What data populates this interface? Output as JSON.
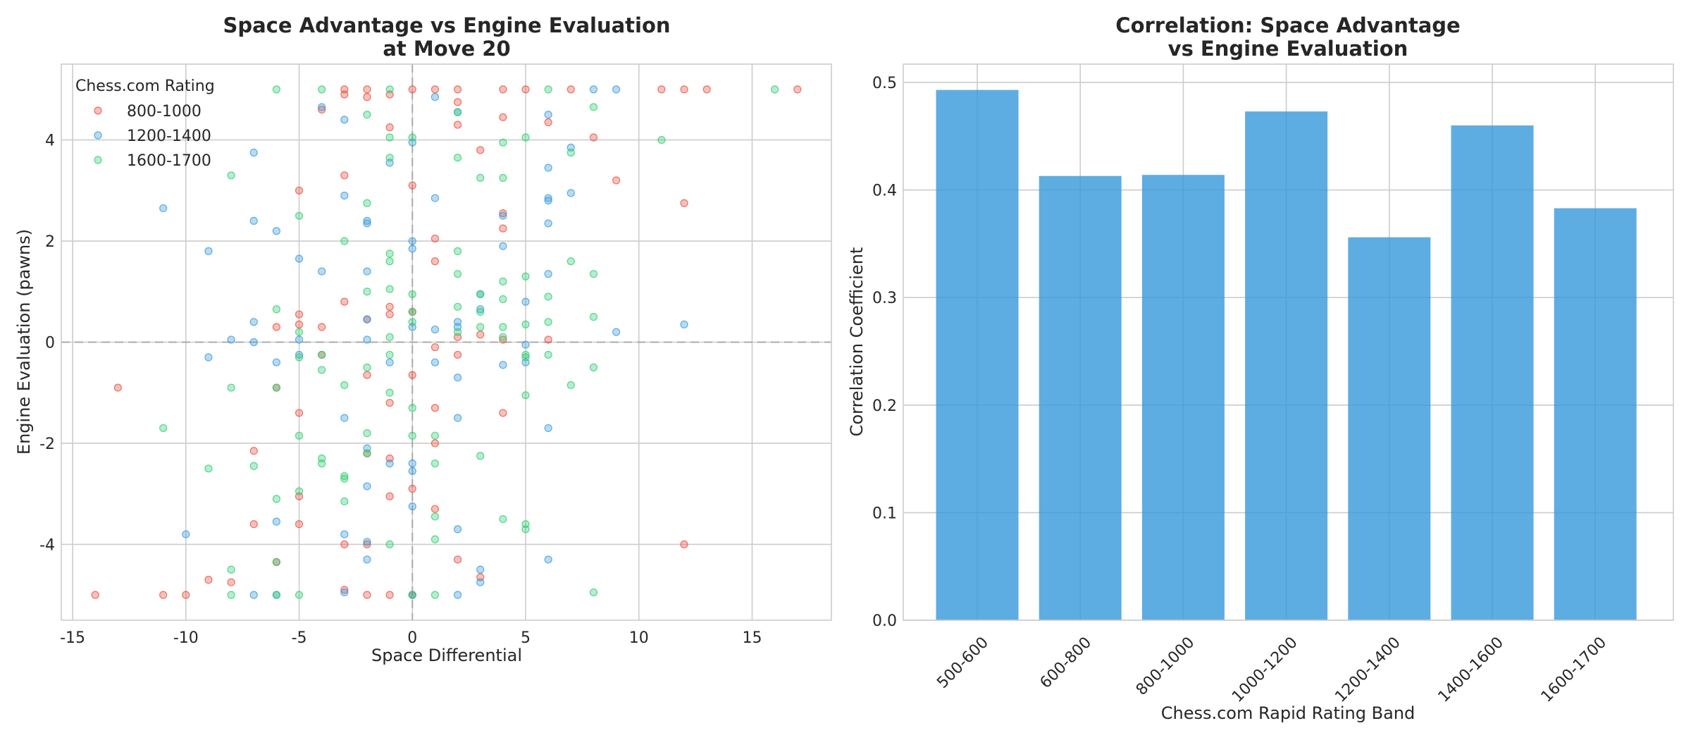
{
  "chart_data": [
    {
      "type": "scatter",
      "title_line1": "Space Advantage vs Engine Evaluation",
      "title_line2": "at Move 20",
      "xlabel": "Space Differential",
      "ylabel": "Engine Evaluation (pawns)",
      "xlim": [
        -15.5,
        18.5
      ],
      "ylim": [
        -5.5,
        5.5
      ],
      "xticks": [
        -15,
        -10,
        -5,
        0,
        5,
        10,
        15
      ],
      "yticks": [
        -4,
        -2,
        0,
        2,
        4
      ],
      "grid": true,
      "reference_lines": {
        "x": 0,
        "y": 0,
        "style": "dashed"
      },
      "legend": {
        "title": "Chess.com Rating",
        "position": "top-left"
      },
      "series": [
        {
          "name": "800-1000",
          "color": "#e74c3c",
          "points": [
            [
              -14,
              -5
            ],
            [
              -13,
              -0.9
            ],
            [
              -11,
              -5
            ],
            [
              -10,
              -5
            ],
            [
              -9,
              -4.7
            ],
            [
              -8,
              -4.75
            ],
            [
              -7,
              -3.6
            ],
            [
              -7,
              -2.15
            ],
            [
              -6,
              0.3
            ],
            [
              -6,
              -0.9
            ],
            [
              -6,
              -4.35
            ],
            [
              -5,
              3
            ],
            [
              -5,
              0.55
            ],
            [
              -5,
              0.35
            ],
            [
              -5,
              -1.4
            ],
            [
              -5,
              -3.05
            ],
            [
              -5,
              -3.6
            ],
            [
              -4,
              4.6
            ],
            [
              -4,
              0.3
            ],
            [
              -4,
              -0.25
            ],
            [
              -3,
              5
            ],
            [
              -3,
              4.9
            ],
            [
              -3,
              3.3
            ],
            [
              -3,
              0.8
            ],
            [
              -3,
              -4
            ],
            [
              -3,
              -4.9
            ],
            [
              -2,
              5
            ],
            [
              -2,
              4.85
            ],
            [
              -2,
              0.45
            ],
            [
              -2,
              -0.65
            ],
            [
              -2,
              -2.2
            ],
            [
              -2,
              -4
            ],
            [
              -2,
              -5
            ],
            [
              -1,
              4.9
            ],
            [
              -1,
              4.25
            ],
            [
              -1,
              0.7
            ],
            [
              -1,
              0.55
            ],
            [
              -1,
              -1.2
            ],
            [
              -1,
              -2.3
            ],
            [
              -1,
              -3.05
            ],
            [
              -1,
              -5
            ],
            [
              0,
              5
            ],
            [
              0,
              3.1
            ],
            [
              0,
              0.6
            ],
            [
              0,
              -0.65
            ],
            [
              0,
              -2.9
            ],
            [
              0,
              -5
            ],
            [
              1,
              5
            ],
            [
              1,
              2.05
            ],
            [
              1,
              1.6
            ],
            [
              1,
              -0.1
            ],
            [
              1,
              -1.3
            ],
            [
              1,
              -2
            ],
            [
              1,
              -3.3
            ],
            [
              2,
              5
            ],
            [
              2,
              4.75
            ],
            [
              2,
              4.3
            ],
            [
              2,
              0.1
            ],
            [
              2,
              -0.25
            ],
            [
              2,
              -4.3
            ],
            [
              3,
              3.8
            ],
            [
              3,
              0.15
            ],
            [
              3,
              -4.65
            ],
            [
              4,
              5
            ],
            [
              4,
              4.45
            ],
            [
              4,
              2.55
            ],
            [
              4,
              2.25
            ],
            [
              4,
              0.05
            ],
            [
              4,
              -1.4
            ],
            [
              5,
              5
            ],
            [
              6,
              4.35
            ],
            [
              6,
              0.05
            ],
            [
              7,
              5
            ],
            [
              8,
              4.05
            ],
            [
              9,
              3.2
            ],
            [
              11,
              5
            ],
            [
              12,
              5
            ],
            [
              12,
              2.75
            ],
            [
              12,
              -4
            ],
            [
              13,
              5
            ],
            [
              17,
              5
            ]
          ]
        },
        {
          "name": "1200-1400",
          "color": "#3498db",
          "points": [
            [
              -11,
              2.65
            ],
            [
              -10,
              -3.8
            ],
            [
              -9,
              1.8
            ],
            [
              -9,
              -0.3
            ],
            [
              -8,
              0.05
            ],
            [
              -7,
              3.75
            ],
            [
              -7,
              2.4
            ],
            [
              -7,
              0.4
            ],
            [
              -7,
              0
            ],
            [
              -7,
              -5
            ],
            [
              -6,
              2.2
            ],
            [
              -6,
              -0.4
            ],
            [
              -6,
              -3.55
            ],
            [
              -6,
              -5
            ],
            [
              -5,
              1.65
            ],
            [
              -5,
              0.05
            ],
            [
              -5,
              -0.25
            ],
            [
              -4,
              4.65
            ],
            [
              -4,
              1.4
            ],
            [
              -3,
              4.4
            ],
            [
              -3,
              2.9
            ],
            [
              -3,
              -1.5
            ],
            [
              -3,
              -3.8
            ],
            [
              -3,
              -4.95
            ],
            [
              -2,
              2.4
            ],
            [
              -2,
              2.35
            ],
            [
              -2,
              1.4
            ],
            [
              -2,
              0.45
            ],
            [
              -2,
              0.05
            ],
            [
              -2,
              -2.1
            ],
            [
              -2,
              -2.85
            ],
            [
              -2,
              -3.95
            ],
            [
              -2,
              -4.3
            ],
            [
              -1,
              3.55
            ],
            [
              -1,
              -0.4
            ],
            [
              -1,
              -2.4
            ],
            [
              0,
              3.95
            ],
            [
              0,
              2
            ],
            [
              0,
              1.85
            ],
            [
              0,
              0.3
            ],
            [
              0,
              -2.4
            ],
            [
              0,
              -2.55
            ],
            [
              0,
              -3.25
            ],
            [
              0,
              -5
            ],
            [
              1,
              4.85
            ],
            [
              1,
              2.85
            ],
            [
              1,
              0.25
            ],
            [
              1,
              -0.4
            ],
            [
              2,
              4.55
            ],
            [
              2,
              0.4
            ],
            [
              2,
              0.3
            ],
            [
              2,
              -0.7
            ],
            [
              2,
              -1.5
            ],
            [
              2,
              -3.7
            ],
            [
              2,
              -5
            ],
            [
              3,
              0.95
            ],
            [
              3,
              0.65
            ],
            [
              3,
              -4.5
            ],
            [
              3,
              -4.75
            ],
            [
              4,
              2.5
            ],
            [
              4,
              1.9
            ],
            [
              4,
              -0.45
            ],
            [
              5,
              0.8
            ],
            [
              5,
              -0.05
            ],
            [
              5,
              -0.4
            ],
            [
              6,
              4.5
            ],
            [
              6,
              3.45
            ],
            [
              6,
              2.85
            ],
            [
              6,
              2.8
            ],
            [
              6,
              2.35
            ],
            [
              6,
              1.35
            ],
            [
              6,
              -1.7
            ],
            [
              6,
              -4.3
            ],
            [
              7,
              3.85
            ],
            [
              7,
              2.95
            ],
            [
              8,
              5
            ],
            [
              9,
              5
            ],
            [
              9,
              0.2
            ],
            [
              12,
              0.35
            ]
          ]
        },
        {
          "name": "1600-1700",
          "color": "#2ecc71",
          "points": [
            [
              -11,
              -1.7
            ],
            [
              -9,
              -2.5
            ],
            [
              -8,
              3.3
            ],
            [
              -8,
              -0.9
            ],
            [
              -8,
              -4.5
            ],
            [
              -8,
              -5
            ],
            [
              -7,
              -2.45
            ],
            [
              -6,
              5
            ],
            [
              -6,
              0.65
            ],
            [
              -6,
              -0.9
            ],
            [
              -6,
              -3.1
            ],
            [
              -6,
              -4.35
            ],
            [
              -6,
              -5
            ],
            [
              -5,
              2.5
            ],
            [
              -5,
              0.2
            ],
            [
              -5,
              -0.3
            ],
            [
              -5,
              -1.85
            ],
            [
              -5,
              -2.95
            ],
            [
              -5,
              -5
            ],
            [
              -4,
              5
            ],
            [
              -4,
              -0.25
            ],
            [
              -4,
              -0.55
            ],
            [
              -4,
              -2.3
            ],
            [
              -4,
              -2.4
            ],
            [
              -3,
              2
            ],
            [
              -3,
              -0.85
            ],
            [
              -3,
              -2.65
            ],
            [
              -3,
              -2.7
            ],
            [
              -3,
              -3.15
            ],
            [
              -2,
              4.5
            ],
            [
              -2,
              2.75
            ],
            [
              -2,
              1
            ],
            [
              -2,
              -0.5
            ],
            [
              -2,
              -1.8
            ],
            [
              -2,
              -2.2
            ],
            [
              -1,
              5
            ],
            [
              -1,
              4.05
            ],
            [
              -1,
              3.65
            ],
            [
              -1,
              1.75
            ],
            [
              -1,
              1.6
            ],
            [
              -1,
              1.05
            ],
            [
              -1,
              0.1
            ],
            [
              -1,
              -0.25
            ],
            [
              -1,
              -1
            ],
            [
              -1,
              -4
            ],
            [
              0,
              4.05
            ],
            [
              0,
              0.95
            ],
            [
              0,
              0.6
            ],
            [
              0,
              0.4
            ],
            [
              0,
              -1.3
            ],
            [
              0,
              -1.85
            ],
            [
              0,
              -5
            ],
            [
              1,
              -1.85
            ],
            [
              1,
              -2.4
            ],
            [
              1,
              -3.45
            ],
            [
              1,
              -3.9
            ],
            [
              1,
              -5
            ],
            [
              2,
              4.55
            ],
            [
              2,
              3.65
            ],
            [
              2,
              1.8
            ],
            [
              2,
              1.35
            ],
            [
              2,
              0.7
            ],
            [
              2,
              0.2
            ],
            [
              3,
              3.25
            ],
            [
              3,
              0.95
            ],
            [
              3,
              0.6
            ],
            [
              3,
              0.3
            ],
            [
              3,
              -2.25
            ],
            [
              4,
              3.95
            ],
            [
              4,
              3.25
            ],
            [
              4,
              1.2
            ],
            [
              4,
              0.85
            ],
            [
              4,
              0.3
            ],
            [
              4,
              0.1
            ],
            [
              4,
              -3.5
            ],
            [
              5,
              4.05
            ],
            [
              5,
              1.3
            ],
            [
              5,
              0.35
            ],
            [
              5,
              -0.25
            ],
            [
              5,
              -0.3
            ],
            [
              5,
              -1.05
            ],
            [
              5,
              -3.6
            ],
            [
              5,
              -3.7
            ],
            [
              6,
              5
            ],
            [
              6,
              0.9
            ],
            [
              6,
              0.4
            ],
            [
              6,
              -0.25
            ],
            [
              7,
              3.75
            ],
            [
              7,
              1.6
            ],
            [
              7,
              -0.85
            ],
            [
              8,
              4.65
            ],
            [
              8,
              1.35
            ],
            [
              8,
              0.5
            ],
            [
              8,
              -0.5
            ],
            [
              8,
              -4.95
            ],
            [
              11,
              4
            ],
            [
              16,
              5
            ]
          ]
        }
      ]
    },
    {
      "type": "bar",
      "title_line1": "Correlation: Space Advantage",
      "title_line2": "vs Engine Evaluation",
      "xlabel": "Chess.com Rapid Rating Band",
      "ylabel": "Correlation Coefficient",
      "categories": [
        "500-600",
        "600-800",
        "800-1000",
        "1000-1200",
        "1200-1400",
        "1400-1600",
        "1600-1700"
      ],
      "values": [
        0.493,
        0.413,
        0.414,
        0.473,
        0.356,
        0.46,
        0.383
      ],
      "ylim": [
        0,
        0.517
      ],
      "yticks": [
        0.0,
        0.1,
        0.2,
        0.3,
        0.4,
        0.5
      ],
      "color": "#3498db",
      "grid": true
    }
  ]
}
